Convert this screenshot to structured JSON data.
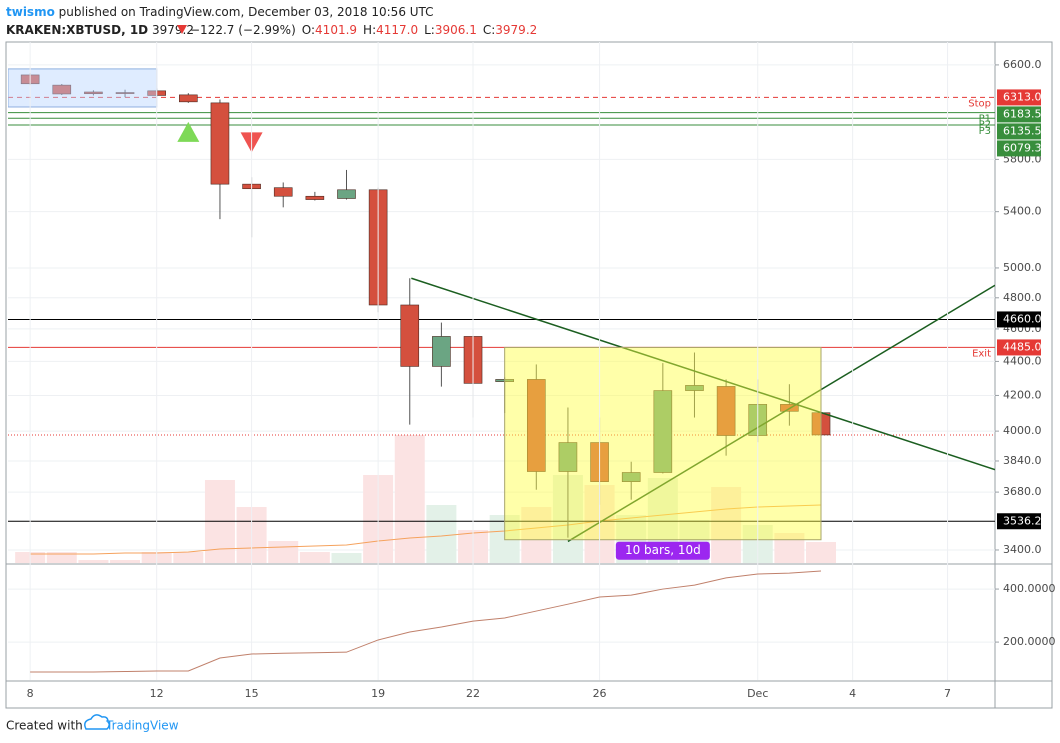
{
  "header": {
    "author": "twismo",
    "title": "published on TradingView.com, December 03, 2018 10:56 UTC",
    "symbol": "KRAKEN:XBTUSD, 1D",
    "last": "3979.2",
    "change": "−122.7 (−2.99%)",
    "ohlc": [
      {
        "label": "O:",
        "value": "4101.9"
      },
      {
        "label": "H:",
        "value": "4117.0"
      },
      {
        "label": "L:",
        "value": "3906.1"
      },
      {
        "label": "C:",
        "value": "3979.2"
      }
    ]
  },
  "footer": {
    "text": "Created with",
    "brand": "TradingView"
  },
  "chart_data": [
    {
      "type": "candlestick",
      "log_scale": true,
      "grid": true,
      "up_color": "#6ba583",
      "down_color": "#d4503e",
      "volume_up_color": "#e3f1e8",
      "volume_down_color": "#fbe3e3",
      "volume_ma_color": "#f5a25d",
      "x": [
        0,
        1,
        2,
        3,
        4,
        5,
        6,
        7,
        8,
        9,
        10,
        11,
        12,
        13,
        14,
        15,
        16,
        17,
        18,
        19,
        20,
        21,
        22,
        23,
        24,
        25
      ],
      "open": [
        6510,
        6420,
        6360,
        6355,
        6370,
        6335,
        6266,
        5607,
        5580,
        5515,
        5498,
        5564,
        4753,
        4370,
        4553,
        4280,
        4293,
        3785,
        3938,
        3733,
        3780,
        4228,
        4252,
        3976,
        4149,
        4101.9
      ],
      "high": [
        6528,
        6430,
        6375,
        6380,
        6390,
        6350,
        6295,
        5660,
        5620,
        5548,
        5717,
        5580,
        4930,
        4640,
        4600,
        4305,
        4382,
        4131,
        4075,
        3836,
        4390,
        4454,
        4293,
        4293,
        4265,
        4117
      ],
      "low": [
        6420,
        6334,
        6330,
        6315,
        6320,
        6266,
        5345,
        5214,
        5432,
        5483,
        5490,
        4706,
        4036,
        4251,
        4075,
        4100,
        3692,
        3458,
        3617,
        3642,
        3775,
        4075,
        3868,
        3940,
        4030,
        3906.1
      ],
      "close": [
        6432,
        6343,
        6345,
        6350,
        6330,
        6275,
        5607,
        5572,
        5515,
        5490,
        5564,
        4753,
        4370,
        4553,
        4270,
        4293,
        3785,
        3938,
        3733,
        3780,
        4228,
        4258,
        3976,
        4149,
        4110,
        3979.2
      ],
      "volume": [
        11,
        11,
        3,
        3,
        11,
        11,
        83,
        56,
        22,
        11,
        10,
        88,
        128,
        58,
        33,
        48,
        56,
        88,
        78,
        48,
        85,
        43,
        76,
        38,
        30,
        21
      ],
      "volume_ma": [
        9,
        9,
        9,
        10,
        10,
        11,
        14,
        15,
        16,
        17,
        18,
        22,
        25,
        27,
        30,
        32,
        35,
        38,
        42,
        45,
        48,
        51,
        54,
        56,
        57,
        58
      ],
      "xlim": [
        -0.7,
        30.5
      ],
      "xticks": [
        {
          "value": 0,
          "label": "8"
        },
        {
          "value": 4,
          "label": "12"
        },
        {
          "value": 7,
          "label": "15"
        },
        {
          "value": 11,
          "label": "19"
        },
        {
          "value": 14,
          "label": "22"
        },
        {
          "value": 18,
          "label": "26"
        },
        {
          "value": 23,
          "label": "Dec"
        },
        {
          "value": 26,
          "label": "4"
        },
        {
          "value": 29,
          "label": "7"
        }
      ],
      "ylim": [
        3340,
        6810
      ],
      "yticks": [
        {
          "value": 6600,
          "label": "6600.0"
        },
        {
          "value": 5800,
          "label": "5800.0"
        },
        {
          "value": 5400,
          "label": "5400.0"
        },
        {
          "value": 5000,
          "label": "5000.0"
        },
        {
          "value": 4800,
          "label": "4800.0"
        },
        {
          "value": 4600,
          "label": "4600.0"
        },
        {
          "value": 4400,
          "label": "4400.0"
        },
        {
          "value": 4200,
          "label": "4200.0"
        },
        {
          "value": 4000,
          "label": "4000.0"
        },
        {
          "value": 3840,
          "label": "3840.0"
        },
        {
          "value": 3680,
          "label": "3680.0"
        },
        {
          "value": 3400,
          "label": "3400.0"
        }
      ],
      "levels": [
        {
          "name": "Stop",
          "value": 6313,
          "label": "6313.0",
          "color": "#e53935",
          "dashed": true
        },
        {
          "name": "P1",
          "value": 6183.5,
          "label": "6183.5",
          "color": "#388e3c"
        },
        {
          "name": "P2",
          "value": 6135.5,
          "label": "6135.5",
          "color": "#388e3c"
        },
        {
          "name": "P3",
          "value": 6079.3,
          "label": "6079.3",
          "color": "#388e3c"
        },
        {
          "value": 4660,
          "label": "4660.0",
          "color": "#000000"
        },
        {
          "name": "Exit",
          "value": 4485,
          "label": "4485.0",
          "color": "#e53935"
        },
        {
          "value": 3536.2,
          "label": "3536.2",
          "color": "#000000"
        }
      ],
      "trend_lines": [
        {
          "x": [
            12.05,
            30.5
          ],
          "y": [
            4930,
            3795
          ],
          "color": "#1b5e20"
        },
        {
          "x": [
            17,
            30.5
          ],
          "y": [
            3440,
            4883
          ],
          "color": "#1b5e20"
        }
      ],
      "range_box": {
        "x": [
          15,
          25
        ],
        "y": [
          3448,
          4485
        ],
        "label": "10 bars, 10d",
        "color": "#ffff40",
        "label_color": "#9c27f0"
      },
      "selection_box": {
        "x": [
          -0.7,
          4
        ],
        "y": [
          6231,
          6564
        ],
        "color": "#b9d4ff"
      },
      "markers": [
        {
          "x": 5,
          "y": 6022,
          "shape": "up",
          "color": "#7ed957"
        },
        {
          "x": 7,
          "y": 5937,
          "shape": "down",
          "color": "#ef5350"
        }
      ]
    },
    {
      "type": "line",
      "color": "#c0806b",
      "values": [
        87,
        87,
        87,
        89,
        91,
        91,
        140,
        155,
        158,
        160,
        162,
        208,
        238,
        257,
        279,
        291,
        317,
        343,
        370,
        377,
        400,
        415,
        442,
        457,
        460,
        468
      ],
      "ylim": [
        57,
        487
      ],
      "yticks": [
        {
          "value": 200,
          "label": "200.0000"
        },
        {
          "value": 400,
          "label": "400.0000"
        }
      ]
    }
  ]
}
